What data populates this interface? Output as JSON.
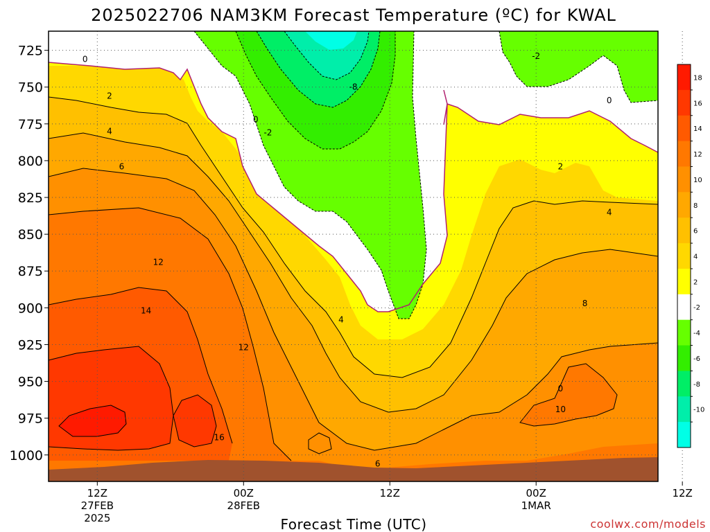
{
  "chart_data": {
    "type": "heatmap",
    "title": "2025022706 NAM3KM Forecast Temperature (ºC) for KWAL",
    "xlabel": "Forecast Time (UTC)",
    "credit": "coolwx.com/models",
    "y_ticks": [
      "725",
      "750",
      "775",
      "800",
      "825",
      "850",
      "875",
      "900",
      "925",
      "950",
      "975",
      "1000"
    ],
    "y_range_mb": [
      712,
      1018
    ],
    "y_inverted": true,
    "x_ticks": [
      {
        "line1": "12Z",
        "line2": "27FEB",
        "line3": "2025"
      },
      {
        "line1": "00Z",
        "line2": "28FEB",
        "line3": ""
      },
      {
        "line1": "12Z",
        "line2": "",
        "line3": ""
      },
      {
        "line1": "00Z",
        "line2": "1MAR",
        "line3": ""
      },
      {
        "line1": "12Z",
        "line2": "",
        "line3": ""
      }
    ],
    "x_range_hours": [
      -4,
      46
    ],
    "x_tick_hours": [
      0,
      12,
      24,
      36,
      48
    ],
    "grid": true,
    "colorbar": {
      "ticks": [
        "18",
        "16",
        "14",
        "12",
        "10",
        "8",
        "6",
        "4",
        "2",
        "-2",
        "-4",
        "-6",
        "-8",
        "-10"
      ],
      "colors": [
        "#ff1a00",
        "#ff3800",
        "#ff5a00",
        "#ff7800",
        "#ff9000",
        "#ffa800",
        "#ffc000",
        "#ffd800",
        "#ffff00",
        "#ffffff",
        "#66ff00",
        "#33ee00",
        "#00ee66",
        "#00eeaa",
        "#00ffe6"
      ]
    },
    "contour_labels": [
      {
        "text": "0",
        "t": -1,
        "p": 731
      },
      {
        "text": "2",
        "t": 1,
        "p": 756
      },
      {
        "text": "4",
        "t": 1,
        "p": 780
      },
      {
        "text": "6",
        "t": 2,
        "p": 804
      },
      {
        "text": "12",
        "t": 5,
        "p": 869
      },
      {
        "text": "14",
        "t": 4,
        "p": 902
      },
      {
        "text": "12",
        "t": 12,
        "p": 927
      },
      {
        "text": "16",
        "t": 10,
        "p": 988
      },
      {
        "text": "0",
        "t": 13,
        "p": 772
      },
      {
        "text": "-2",
        "t": 14,
        "p": 781
      },
      {
        "text": "-8",
        "t": 21,
        "p": 750
      },
      {
        "text": "4",
        "t": 20,
        "p": 908
      },
      {
        "text": "6",
        "t": 23,
        "p": 1006
      },
      {
        "text": "-2",
        "t": 36,
        "p": 729
      },
      {
        "text": "0",
        "t": 42,
        "p": 759
      },
      {
        "text": "2",
        "t": 38,
        "p": 804
      },
      {
        "text": "4",
        "t": 42,
        "p": 835
      },
      {
        "text": "8",
        "t": 40,
        "p": 897
      },
      {
        "text": "0",
        "t": 38,
        "p": 955
      },
      {
        "text": "10",
        "t": 38,
        "p": 969
      }
    ]
  }
}
